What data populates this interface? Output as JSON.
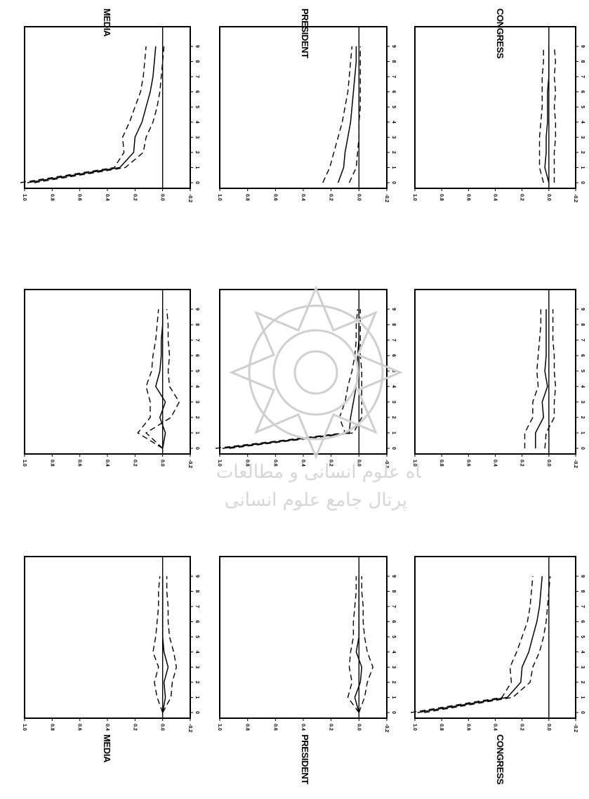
{
  "chart_data": {
    "type": "line",
    "title": "",
    "orientation": "rotated-90",
    "column_titles": [
      "MEDIA",
      "PRESIDENT",
      "CONGRESS"
    ],
    "row_titles": [
      "MEDIA",
      "PRESIDENT",
      "CONGRESS"
    ],
    "y_ticks": [
      "1.0",
      "0.8",
      "0.6",
      "0.4",
      "0.2",
      "0.0",
      "-0.2"
    ],
    "y_range": [
      -0.2,
      1.0
    ],
    "x_ticks": [
      "0",
      "1",
      "2",
      "3",
      "4",
      "5",
      "6",
      "7",
      "8",
      "9"
    ],
    "x_range": [
      0,
      9
    ],
    "panels": [
      [
        {
          "response": "MEDIA",
          "shock": "MEDIA",
          "x": [
            0,
            1,
            2,
            3,
            4,
            5,
            6,
            7,
            8,
            9
          ],
          "y": [
            0.98,
            0.31,
            0.21,
            0.2,
            0.15,
            0.12,
            0.09,
            0.07,
            0.06,
            0.05
          ],
          "upper": [
            1.03,
            0.35,
            0.28,
            0.29,
            0.24,
            0.2,
            0.16,
            0.14,
            0.13,
            0.12
          ],
          "lower": [
            0.93,
            0.27,
            0.14,
            0.12,
            0.07,
            0.04,
            0.02,
            0.01,
            0.0,
            -0.01
          ]
        },
        {
          "response": "MEDIA",
          "shock": "PRESIDENT",
          "x": [
            0,
            1,
            2,
            3,
            4,
            5,
            6,
            7,
            8,
            9
          ],
          "y": [
            0.0,
            -0.02,
            0.02,
            -0.02,
            0.05,
            0.02,
            0.01,
            0.01,
            0.0,
            0.0
          ],
          "upper": [
            0.0,
            0.18,
            0.09,
            0.09,
            0.12,
            0.08,
            0.07,
            0.05,
            0.04,
            0.03
          ],
          "lower": [
            0.0,
            0.12,
            -0.06,
            -0.12,
            -0.05,
            -0.04,
            -0.05,
            -0.04,
            -0.04,
            -0.03
          ]
        },
        {
          "response": "MEDIA",
          "shock": "CONGRESS",
          "x": [
            0,
            1,
            2,
            3,
            4,
            5,
            6,
            7,
            8,
            9
          ],
          "y": [
            0.0,
            -0.02,
            -0.01,
            -0.04,
            -0.01,
            0.0,
            0.0,
            0.0,
            0.0,
            0.0
          ],
          "upper": [
            0.0,
            0.04,
            0.06,
            0.03,
            0.07,
            0.05,
            0.04,
            0.03,
            0.03,
            0.02
          ],
          "lower": [
            0.0,
            -0.06,
            -0.07,
            -0.1,
            -0.08,
            -0.05,
            -0.04,
            -0.04,
            -0.03,
            -0.03
          ]
        }
      ],
      [
        {
          "response": "PRESIDENT",
          "shock": "MEDIA",
          "x": [
            0,
            1,
            2,
            3,
            4,
            5,
            6,
            7,
            8,
            9
          ],
          "y": [
            0.15,
            0.11,
            0.1,
            0.08,
            0.06,
            0.05,
            0.04,
            0.03,
            0.02,
            0.02
          ],
          "upper": [
            0.26,
            0.21,
            0.18,
            0.15,
            0.12,
            0.1,
            0.08,
            0.07,
            0.06,
            0.05
          ],
          "lower": [
            0.07,
            0.02,
            0.01,
            0.0,
            0.0,
            -0.01,
            -0.01,
            -0.01,
            -0.01,
            -0.01
          ]
        },
        {
          "response": "PRESIDENT",
          "shock": "PRESIDENT",
          "x": [
            0,
            1,
            2,
            3,
            4,
            5,
            6,
            7,
            8,
            9
          ],
          "y": [
            0.98,
            0.07,
            0.06,
            0.04,
            0.02,
            0.01,
            0.01,
            0.0,
            0.0,
            0.0
          ],
          "upper": [
            1.03,
            0.1,
            0.14,
            0.1,
            0.08,
            0.05,
            0.03,
            0.02,
            0.02,
            0.01
          ],
          "lower": [
            0.93,
            0.04,
            -0.02,
            -0.02,
            -0.02,
            -0.02,
            -0.01,
            -0.01,
            -0.01,
            -0.01
          ]
        },
        {
          "response": "PRESIDENT",
          "shock": "CONGRESS",
          "x": [
            0,
            1,
            2,
            3,
            4,
            5,
            6,
            7,
            8,
            9
          ],
          "y": [
            0.0,
            0.03,
            -0.01,
            -0.02,
            0.02,
            0.0,
            0.0,
            0.0,
            0.0,
            0.0
          ],
          "upper": [
            0.0,
            0.08,
            0.05,
            0.07,
            0.06,
            0.04,
            0.04,
            0.03,
            0.02,
            0.02
          ],
          "lower": [
            0.0,
            -0.04,
            -0.06,
            -0.1,
            -0.06,
            -0.04,
            -0.03,
            -0.03,
            -0.02,
            -0.02
          ]
        }
      ],
      [
        {
          "response": "CONGRESS",
          "shock": "MEDIA",
          "x": [
            0,
            1,
            2,
            3,
            4,
            5,
            6,
            7,
            8,
            9
          ],
          "y": [
            0.0,
            0.03,
            0.02,
            0.02,
            0.01,
            0.01,
            0.01,
            0.0,
            0.0,
            0.0
          ],
          "upper": [
            0.04,
            0.07,
            0.07,
            0.07,
            0.06,
            0.05,
            0.05,
            0.05,
            0.04,
            0.04
          ],
          "lower": [
            -0.04,
            -0.04,
            -0.04,
            -0.05,
            -0.05,
            -0.04,
            -0.05,
            -0.04,
            -0.05,
            -0.04
          ]
        },
        {
          "response": "CONGRESS",
          "shock": "PRESIDENT",
          "x": [
            0,
            1,
            2,
            3,
            4,
            5,
            6,
            7,
            8,
            9
          ],
          "y": [
            0.1,
            0.1,
            0.04,
            0.05,
            0.01,
            0.03,
            0.02,
            0.02,
            0.02,
            0.02
          ],
          "upper": [
            0.18,
            0.18,
            0.12,
            0.12,
            0.08,
            0.09,
            0.08,
            0.07,
            0.06,
            0.06
          ],
          "lower": [
            0.03,
            0.02,
            -0.04,
            -0.04,
            -0.05,
            -0.04,
            -0.04,
            -0.03,
            -0.03,
            -0.03
          ]
        },
        {
          "response": "CONGRESS",
          "shock": "CONGRESS",
          "x": [
            0,
            1,
            2,
            3,
            4,
            5,
            6,
            7,
            8,
            9
          ],
          "y": [
            0.98,
            0.31,
            0.21,
            0.2,
            0.15,
            0.12,
            0.09,
            0.07,
            0.06,
            0.05
          ],
          "upper": [
            1.03,
            0.35,
            0.28,
            0.29,
            0.24,
            0.2,
            0.16,
            0.14,
            0.13,
            0.12
          ],
          "lower": [
            0.93,
            0.27,
            0.14,
            0.12,
            0.07,
            0.04,
            0.02,
            0.01,
            0.0,
            -0.01
          ]
        }
      ]
    ],
    "watermark_text": [
      "پژوهشگاه علوم انسانی و مطالعات فرهنگی",
      "پرتال جامع علوم انسانی"
    ]
  }
}
